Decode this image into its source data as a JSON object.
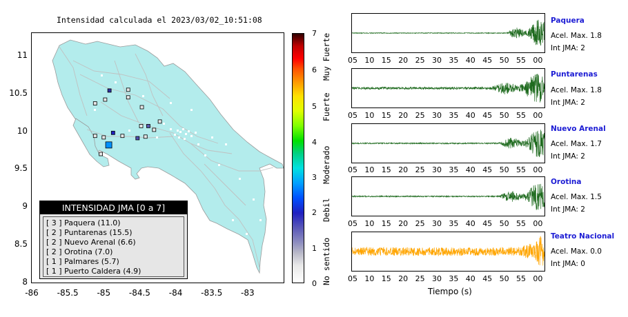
{
  "map": {
    "title": "Intensidad calculada el 2023/03/02_10:51:08",
    "lon_ticks": [
      "-86",
      "-85.5",
      "-85",
      "-84.5",
      "-84",
      "-83.5",
      "-83"
    ],
    "lat_ticks": [
      "11",
      "10.5",
      "10",
      "9.5",
      "9",
      "8.5",
      "8"
    ],
    "land_color": "#b3ecec",
    "road_color": "#c0c0c0",
    "stations_marked": [
      {
        "lon": -84.92,
        "lat": 10.54,
        "fill": "#3030a0"
      },
      {
        "lon": -84.66,
        "lat": 10.55,
        "fill": "#e6e6e6"
      },
      {
        "lon": -84.66,
        "lat": 10.45,
        "fill": "#e6e6e6"
      },
      {
        "lon": -84.98,
        "lat": 10.42,
        "fill": "#e6e6e6"
      },
      {
        "lon": -85.12,
        "lat": 10.37,
        "fill": "#e6e6e6"
      },
      {
        "lon": -84.47,
        "lat": 10.32,
        "fill": "#e6e6e6"
      },
      {
        "lon": -84.22,
        "lat": 10.13,
        "fill": "#e6e6e6"
      },
      {
        "lon": -84.48,
        "lat": 10.07,
        "fill": "#e6e6e6"
      },
      {
        "lon": -84.38,
        "lat": 10.07,
        "fill": "#5a5ab0"
      },
      {
        "lon": -84.3,
        "lat": 10.02,
        "fill": "#e6e6e6"
      },
      {
        "lon": -84.42,
        "lat": 9.93,
        "fill": "#e6e6e6"
      },
      {
        "lon": -84.53,
        "lat": 9.91,
        "fill": "#5050b0"
      },
      {
        "lon": -84.87,
        "lat": 9.98,
        "fill": "#2020c0"
      },
      {
        "lon": -84.74,
        "lat": 9.94,
        "fill": "#e6e6e6"
      },
      {
        "lon": -85.0,
        "lat": 9.92,
        "fill": "#e6e6e6"
      },
      {
        "lon": -84.93,
        "lat": 9.82,
        "fill": "#0090ff",
        "big": true
      },
      {
        "lon": -85.04,
        "lat": 9.7,
        "fill": "#e6e6e6"
      },
      {
        "lon": -85.12,
        "lat": 9.94,
        "fill": "#e6e6e6"
      }
    ],
    "legend": {
      "title": "INTENSIDAD JMA [0 a 7]",
      "rows": [
        "[ 3 ] Paquera (11.0)",
        "[ 2 ] Puntarenas (15.5)",
        "[ 2 ] Nuevo Arenal (6.6)",
        "[ 2 ] Orotina (7.0)",
        "[ 1 ] Palmares (5.7)",
        "[ 1 ] Puerto Caldera (4.9)"
      ]
    }
  },
  "colorbar": {
    "numbers": [
      "7",
      "6",
      "5",
      "4",
      "3",
      "2",
      "1",
      "0"
    ],
    "words": [
      "Muy Fuerte",
      "Fuerte",
      "Moderado",
      "Debil",
      "No sentido"
    ]
  },
  "waveforms": {
    "x_ticks": [
      "05",
      "10",
      "15",
      "20",
      "25",
      "30",
      "35",
      "40",
      "45",
      "50",
      "55",
      "00"
    ],
    "x_label": "Tiempo (s)",
    "stations": [
      {
        "name": "Paquera",
        "accel": "Acel. Max. 1.8",
        "jma": "Int JMA: 2",
        "color": "#1f6b1f",
        "onset": 0.8,
        "peak": 0.7,
        "noise": 0.02
      },
      {
        "name": "Puntarenas",
        "accel": "Acel. Max. 1.8",
        "jma": "Int JMA: 2",
        "color": "#1f6b1f",
        "onset": 0.72,
        "peak": 0.7,
        "noise": 0.06
      },
      {
        "name": "Nuevo Arenal",
        "accel": "Acel. Max. 1.7",
        "jma": "Int JMA: 2",
        "color": "#1f6b1f",
        "onset": 0.76,
        "peak": 0.7,
        "noise": 0.03
      },
      {
        "name": "Orotina",
        "accel": "Acel. Max. 1.5",
        "jma": "Int JMA: 2",
        "color": "#1f6b1f",
        "onset": 0.76,
        "peak": 0.7,
        "noise": 0.03
      },
      {
        "name": "Teatro Nacional",
        "accel": "Acel. Max. 0.0",
        "jma": "Int JMA: 0",
        "color": "#ffa500",
        "onset": 0.88,
        "peak": 0.7,
        "noise": 0.22
      }
    ]
  }
}
